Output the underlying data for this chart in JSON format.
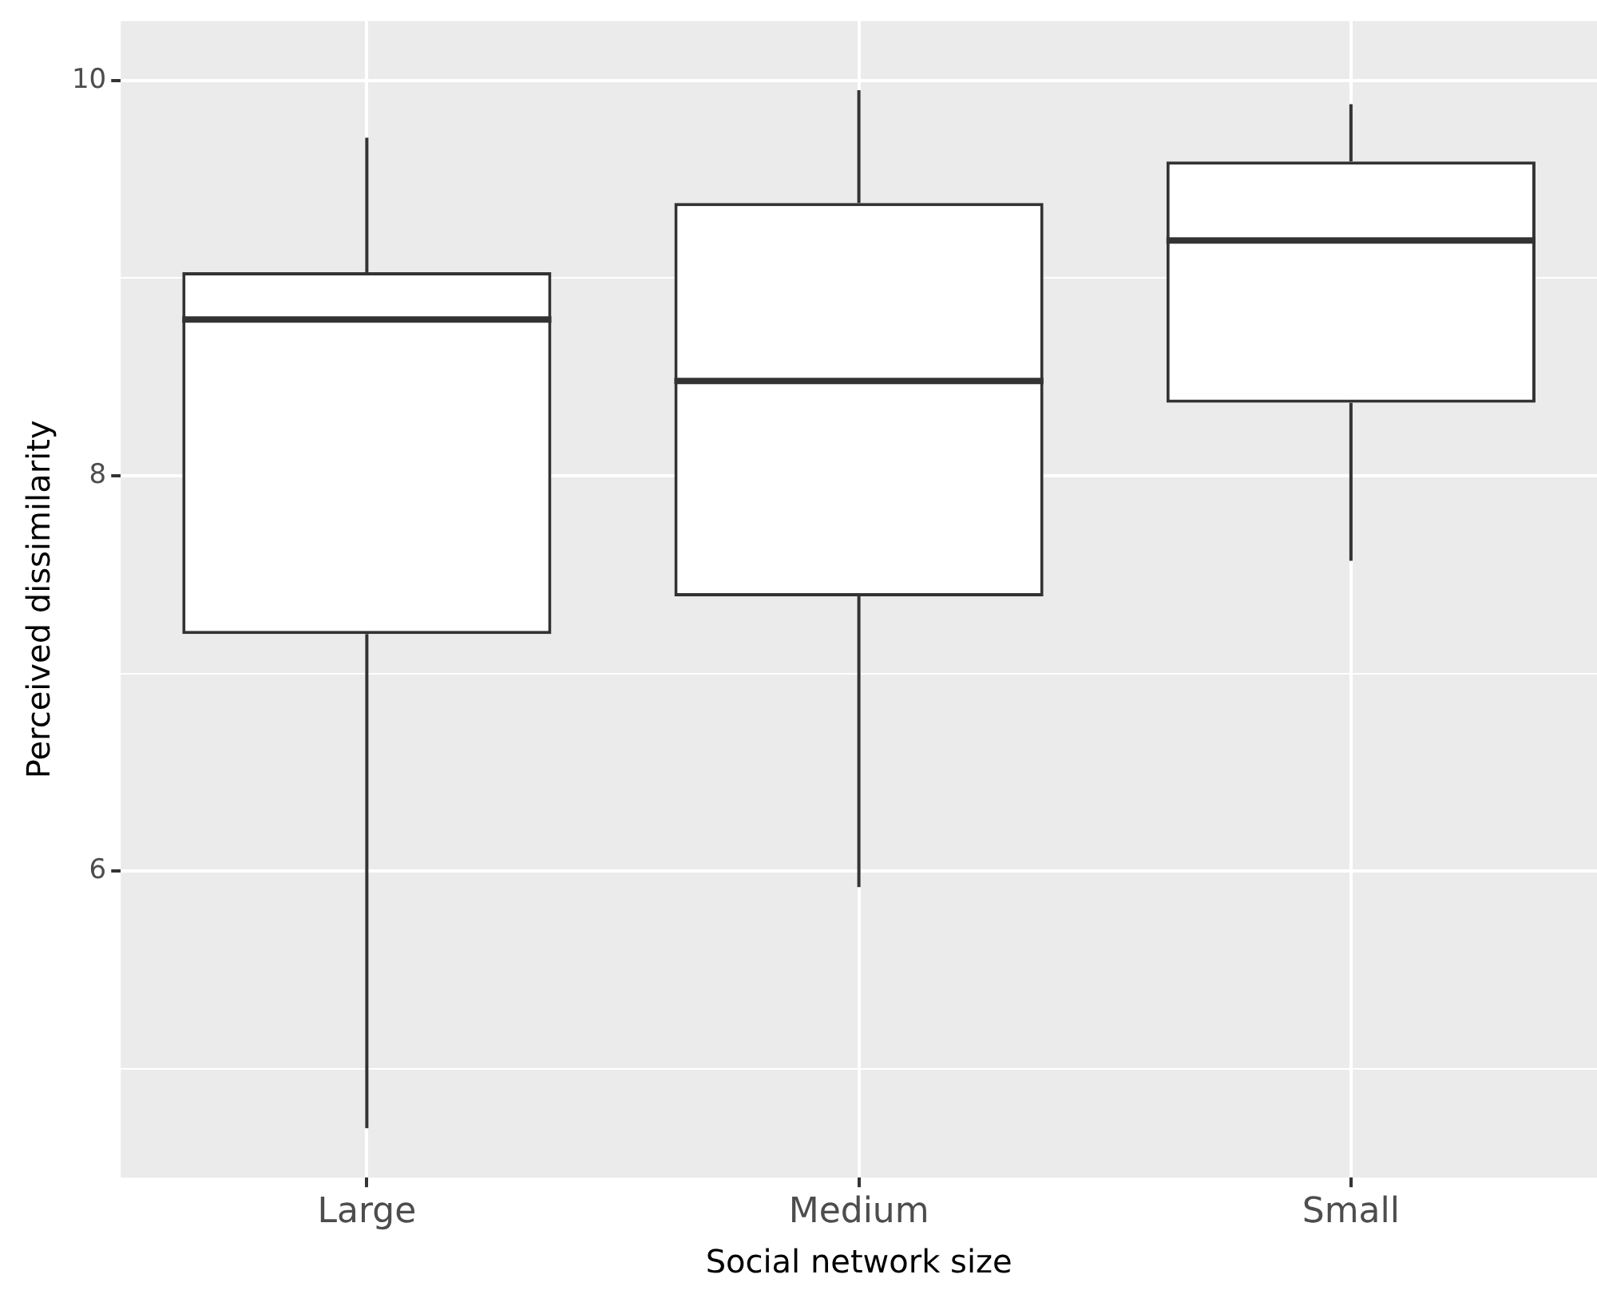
{
  "chart_data": {
    "type": "box",
    "xlabel": "Social network size",
    "ylabel": "Perceived dissimilarity",
    "categories": [
      "Large",
      "Medium",
      "Small"
    ],
    "boxes": [
      {
        "low": 4.7,
        "q1": 7.2,
        "median": 8.79,
        "q3": 9.03,
        "high": 9.71
      },
      {
        "low": 5.92,
        "q1": 7.39,
        "median": 8.48,
        "q3": 9.38,
        "high": 9.95
      },
      {
        "low": 7.57,
        "q1": 8.37,
        "median": 9.19,
        "q3": 9.59,
        "high": 9.88
      }
    ],
    "ylim": [
      4.45,
      10.3
    ],
    "yticks": [
      {
        "value": 5,
        "label": null
      },
      6,
      {
        "value": 7,
        "label": null
      },
      8,
      {
        "value": 9,
        "label": null
      },
      10
    ],
    "grid": true
  }
}
